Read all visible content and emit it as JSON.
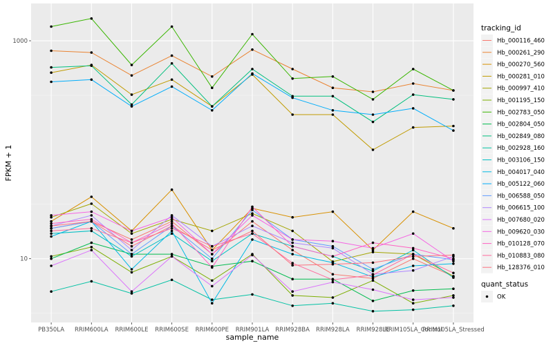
{
  "chart_data": {
    "type": "line",
    "xlabel": "sample_name",
    "ylabel": "FPKM + 1",
    "y_scale": "log10",
    "ylim": [
      2.6,
      2200
    ],
    "y_ticks": [
      {
        "value": 10,
        "label": "10"
      },
      {
        "value": 1000,
        "label": "1000"
      }
    ],
    "grid": true,
    "categories": [
      "PB350LA",
      "RRIM600LA",
      "RRIM600LE",
      "RRIM600SE",
      "RRIM600PE",
      "RRIM901LA",
      "RRIM928BA",
      "RRIM928LA",
      "RRIM928LE",
      "RRIM105LA_Control",
      "RRIM105LA_Stressed"
    ],
    "series": [
      {
        "name": "Hb_000116_460",
        "color": "#F8766D",
        "values": [
          19,
          22,
          15,
          22,
          11,
          22,
          12,
          7.2,
          6.6,
          10,
          6.9
        ]
      },
      {
        "name": "Hb_000261_290",
        "color": "#EA8331",
        "values": [
          810,
          780,
          480,
          730,
          470,
          830,
          550,
          370,
          340,
          405,
          350
        ]
      },
      {
        "name": "Hb_000270_560",
        "color": "#D89000",
        "values": [
          22,
          37,
          18,
          43,
          12,
          29,
          24,
          27,
          12,
          27,
          19
        ]
      },
      {
        "name": "Hb_000281_010",
        "color": "#C09B00",
        "values": [
          510,
          600,
          320,
          440,
          250,
          490,
          210,
          210,
          100,
          160,
          165
        ]
      },
      {
        "name": "Hb_000997_410",
        "color": "#A3A500",
        "values": [
          24,
          32,
          17,
          23,
          18,
          26,
          18,
          9.4,
          11.5,
          11,
          6.9
        ]
      },
      {
        "name": "Hb_001195_150",
        "color": "#7CAE00",
        "values": [
          10.5,
          12.8,
          7.5,
          10.5,
          6.3,
          11,
          4.6,
          4.4,
          6.3,
          3.9,
          4.6
        ]
      },
      {
        "name": "Hb_002783_050",
        "color": "#39B600",
        "values": [
          1350,
          1600,
          600,
          1350,
          370,
          1150,
          450,
          470,
          290,
          550,
          350
        ]
      },
      {
        "name": "Hb_002804_050",
        "color": "#00BB4E",
        "values": [
          10,
          14,
          11,
          11,
          8.5,
          9.5,
          6.5,
          6.5,
          4.1,
          5.1,
          5.3
        ]
      },
      {
        "name": "Hb_002849_080",
        "color": "#00BF7D",
        "values": [
          570,
          590,
          260,
          620,
          250,
          550,
          310,
          310,
          180,
          320,
          290
        ]
      },
      {
        "name": "Hb_002928_160",
        "color": "#00C1A3",
        "values": [
          5,
          6.2,
          4.8,
          6.4,
          4.2,
          4.7,
          3.7,
          3.9,
          3.3,
          3.4,
          3.7
        ]
      },
      {
        "name": "Hb_003106_150",
        "color": "#00BFC4",
        "values": [
          17,
          18,
          10.5,
          17,
          9.5,
          17,
          13,
          10.5,
          7.7,
          12,
          6.7
        ]
      },
      {
        "name": "Hb_004017_040",
        "color": "#00B9E3",
        "values": [
          16,
          22,
          8,
          18,
          3.9,
          15,
          11,
          9.2,
          6.8,
          8.6,
          9
        ]
      },
      {
        "name": "Hb_005122_060",
        "color": "#00ADFA",
        "values": [
          420,
          440,
          250,
          380,
          230,
          500,
          300,
          230,
          210,
          240,
          150
        ]
      },
      {
        "name": "Hb_006588_050",
        "color": "#619CFF",
        "values": [
          19,
          22,
          11,
          20,
          10,
          28,
          15,
          13,
          8,
          11,
          9.8
        ]
      },
      {
        "name": "Hb_006615_100",
        "color": "#AE87FF",
        "values": [
          20,
          25,
          12,
          25,
          13,
          20,
          14,
          12.5,
          7.2,
          7.8,
          10.5
        ]
      },
      {
        "name": "Hb_007680_020",
        "color": "#DB72FB",
        "values": [
          8.6,
          12,
          5,
          10.5,
          5.6,
          10.8,
          5,
          6.1,
          5.2,
          4.2,
          4.4
        ]
      },
      {
        "name": "Hb_009620_030",
        "color": "#F564E3",
        "values": [
          25,
          27,
          18,
          24,
          11,
          25,
          15,
          14.5,
          12.5,
          17,
          9.5
        ]
      },
      {
        "name": "Hb_010128_070",
        "color": "#FF61C3",
        "values": [
          21,
          23,
          14,
          21,
          8.3,
          30,
          13,
          10.5,
          14,
          12.5,
          10
        ]
      },
      {
        "name": "Hb_010883_080",
        "color": "#FF699C",
        "values": [
          18,
          19,
          14,
          19,
          13,
          17,
          9.1,
          6.4,
          7.1,
          11,
          7.4
        ]
      },
      {
        "name": "Hb_128376_010",
        "color": "#FC717F",
        "values": [
          20,
          22,
          13,
          20,
          12,
          18,
          8.7,
          8.9,
          9.2,
          10.5,
          10.8
        ]
      }
    ],
    "legend": {
      "title": "tracking_id",
      "position": "right"
    },
    "legend2": {
      "title": "quant_status",
      "items": [
        "OK"
      ]
    }
  }
}
